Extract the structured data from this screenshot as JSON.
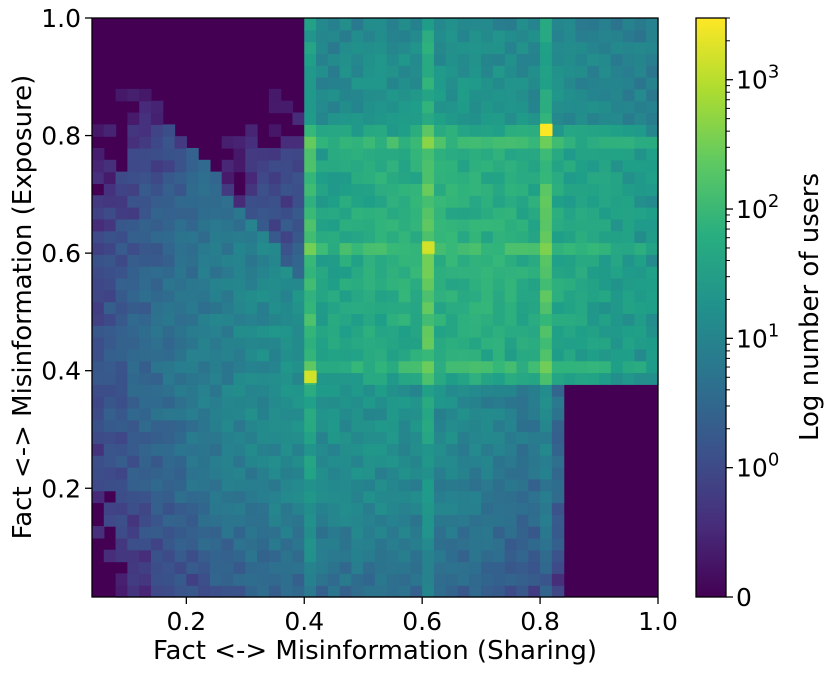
{
  "chart_data": {
    "type": "heatmap",
    "title": "",
    "xlabel": "Fact <-> Misinformation (Sharing)",
    "ylabel": "Fact <-> Misinformation (Exposure)",
    "xlim": [
      0.04,
      1.0
    ],
    "ylim": [
      0.015,
      1.0
    ],
    "x_ticks": [
      {
        "value": 0.2,
        "label": "0.2"
      },
      {
        "value": 0.4,
        "label": "0.4"
      },
      {
        "value": 0.6,
        "label": "0.6"
      },
      {
        "value": 0.8,
        "label": "0.8"
      },
      {
        "value": 1.0,
        "label": "1.0"
      }
    ],
    "y_ticks": [
      {
        "value": 0.2,
        "label": "0.2"
      },
      {
        "value": 0.4,
        "label": "0.4"
      },
      {
        "value": 0.6,
        "label": "0.6"
      },
      {
        "value": 0.8,
        "label": "0.8"
      },
      {
        "value": 1.0,
        "label": "1.0"
      }
    ],
    "bins": {
      "nx": 48,
      "ny": 49
    },
    "colorbar": {
      "label": "Log number of users",
      "scale": "symlog",
      "max_value": 3000,
      "ticks": [
        {
          "value": 0,
          "base": "0",
          "exp": ""
        },
        {
          "value": 1,
          "base": "10",
          "exp": "0"
        },
        {
          "value": 10,
          "base": "10",
          "exp": "1"
        },
        {
          "value": 100,
          "base": "10",
          "exp": "2"
        },
        {
          "value": 1000,
          "base": "10",
          "exp": "3"
        }
      ],
      "colormap": "viridis"
    },
    "density_description": {
      "dense_region": {
        "x": [
          0.4,
          1.0
        ],
        "y": [
          0.37,
          1.0
        ]
      },
      "peak_lines_x": [
        0.4,
        0.6,
        0.8
      ],
      "peak_lines_y": [
        0.8,
        0.6,
        0.4
      ],
      "peak_cells": [
        {
          "x": 0.8,
          "y": 0.8,
          "count": 3000
        },
        {
          "x": 0.4,
          "y": 0.38,
          "count": 1500
        },
        {
          "x": 0.6,
          "y": 0.6,
          "count": 1500
        }
      ]
    }
  }
}
